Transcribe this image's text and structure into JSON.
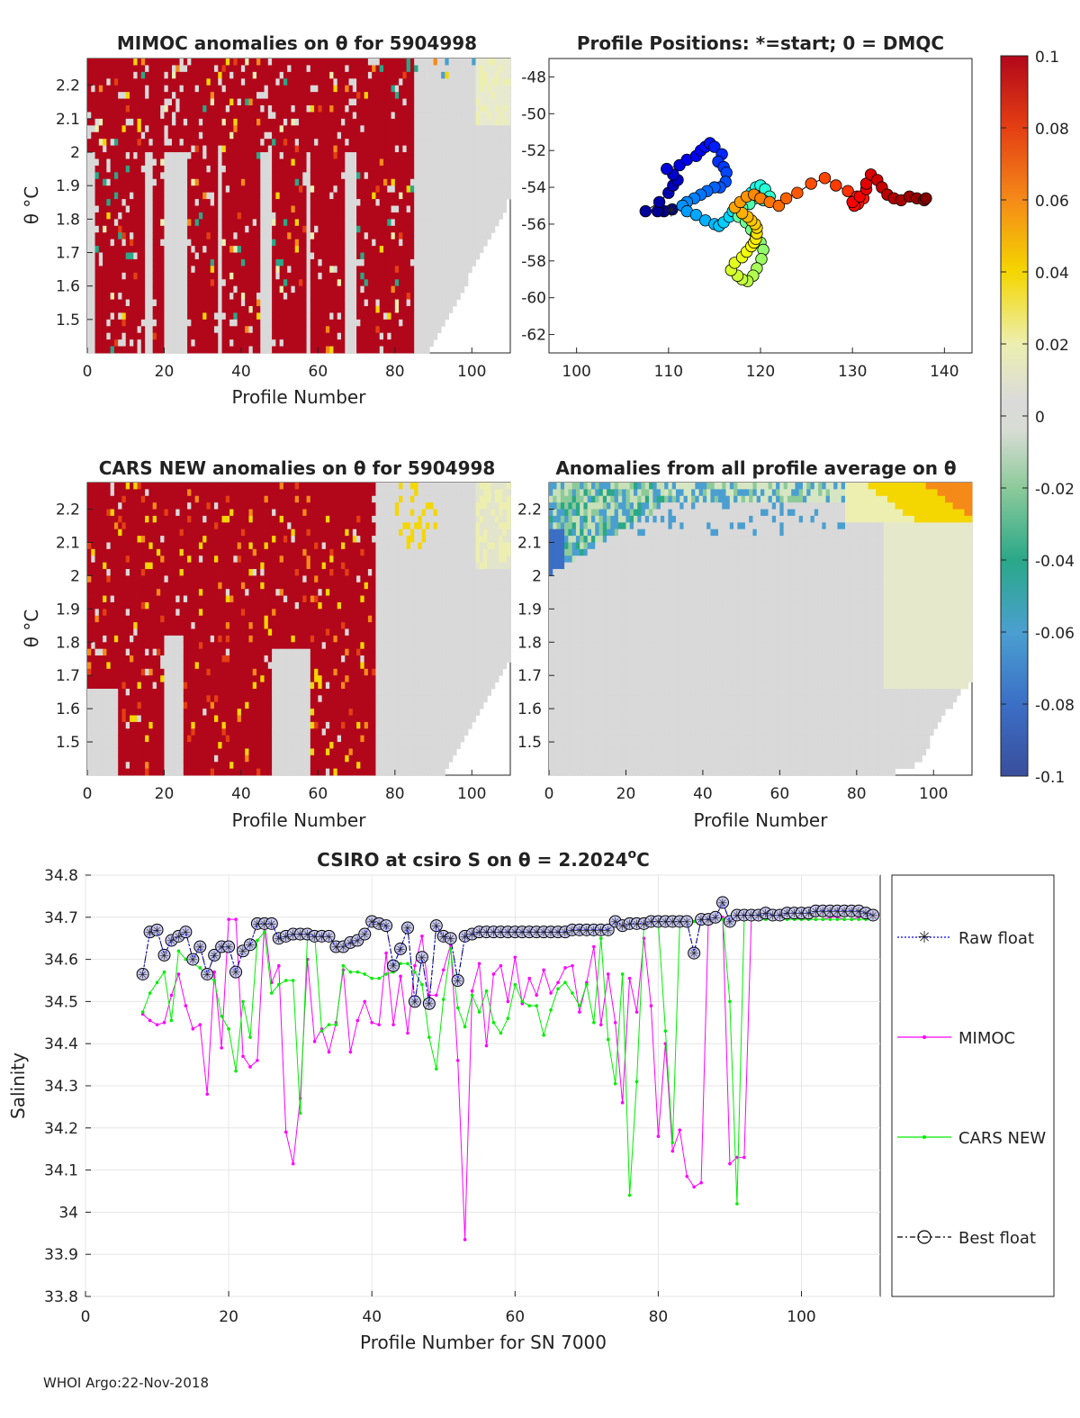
{
  "footer": "WHOI Argo:22-Nov-2018",
  "colors": {
    "red": "#b2071b",
    "grey": "#d9d9d9",
    "magenta": "#ff00ff",
    "green": "#00ee00",
    "blue": "#0000ff",
    "black": "#000000"
  },
  "colorbar": {
    "ticks": [
      "0.1",
      "0.08",
      "0.06",
      "0.04",
      "0.02",
      "0",
      "-0.02",
      "-0.04",
      "-0.06",
      "-0.08",
      "-0.1"
    ],
    "range": [
      -0.1,
      0.1
    ]
  },
  "chart_data": [
    {
      "id": "mimoc",
      "type": "heatmap",
      "title": "MIMOC anomalies on θ  for 5904998",
      "xlabel": "Profile Number",
      "ylabel": "θ °C",
      "xlim": [
        0,
        110
      ],
      "ylim": [
        1.4,
        2.28
      ],
      "xticks": [
        "0",
        "20",
        "40",
        "60",
        "80",
        "100"
      ],
      "yticks": [
        "2.2",
        "2.1",
        "2",
        "1.9",
        "1.8",
        "1.7",
        "1.6",
        "1.5"
      ],
      "yticks_values": [
        2.2,
        2.1,
        2.0,
        1.9,
        1.8,
        1.7,
        1.6,
        1.5
      ],
      "xticks_values": [
        0,
        20,
        40,
        60,
        80,
        100
      ],
      "dominant": "positive anomalies (red) for profiles 0-85, near zero (grey) beyond",
      "red_columns": [
        [
          2,
          14
        ],
        [
          17,
          19
        ],
        [
          26,
          33
        ],
        [
          35,
          44
        ],
        [
          48,
          56
        ],
        [
          58,
          66
        ],
        [
          70,
          84
        ]
      ],
      "data_extent": {
        "x": [
          0,
          110
        ],
        "bottom_edge": [
          [
            0,
            1.4
          ],
          [
            80,
            1.4
          ],
          [
            85,
            1.47
          ],
          [
            90,
            1.53
          ],
          [
            95,
            1.6
          ],
          [
            100,
            1.68
          ],
          [
            105,
            1.8
          ],
          [
            110,
            2.0
          ]
        ]
      }
    },
    {
      "id": "positions",
      "type": "scatter",
      "title": "Profile Positions: *=start; 0 = DMQC",
      "xlim": [
        97,
        143
      ],
      "ylim": [
        -63,
        -47
      ],
      "xticks": [
        "100",
        "110",
        "120",
        "130",
        "140"
      ],
      "xticks_values": [
        100,
        110,
        120,
        130,
        140
      ],
      "yticks": [
        "-48",
        "-50",
        "-52",
        "-54",
        "-56",
        "-58",
        "-60",
        "-62"
      ],
      "yticks_values": [
        -48,
        -50,
        -52,
        -54,
        -56,
        -58,
        -60,
        -62
      ],
      "lon": [
        110.4,
        109.5,
        108.8,
        107.5,
        109,
        110,
        110.5,
        111,
        110.5,
        109.8,
        111.2,
        112,
        113,
        113.5,
        114,
        114.5,
        115,
        115.8,
        115.4,
        116,
        116.3,
        116.2,
        115.6,
        115,
        114.2,
        113.5,
        112.8,
        112,
        111.5,
        112,
        113,
        114,
        115,
        115.5,
        116,
        116.6,
        117,
        117.5,
        118,
        118.5,
        119,
        119.5,
        120,
        120.5,
        121,
        120.3,
        119.4,
        118.8,
        118,
        117.6,
        118.4,
        119,
        119.5,
        120,
        120.3,
        120.1,
        119.6,
        119.2,
        118.6,
        118,
        117.5,
        116.8,
        117.2,
        118,
        118.5,
        119,
        119.3,
        119.5,
        119.6,
        119.6,
        119.4,
        119,
        118.6,
        118,
        117.2,
        117.8,
        118.5,
        119.3,
        120,
        121,
        122,
        122.8,
        124,
        125.5,
        127,
        128.2,
        129.5,
        130.5,
        131.2,
        130.6,
        130.2,
        130,
        130.8,
        131.5,
        131.5,
        132,
        132.7,
        133.2,
        133.8,
        134.5,
        135.3,
        136.2,
        137,
        137.8,
        138
      ],
      "lat": [
        -55.2,
        -55.3,
        -55.3,
        -55.3,
        -54.8,
        -54.3,
        -53.9,
        -53.6,
        -53.3,
        -53,
        -52.8,
        -52.5,
        -52.3,
        -52,
        -51.8,
        -51.6,
        -51.8,
        -52.2,
        -52.6,
        -52.9,
        -53.2,
        -53.7,
        -54,
        -54,
        -54.2,
        -54.4,
        -54.6,
        -54.8,
        -55,
        -55.3,
        -55.5,
        -55.8,
        -56,
        -56.1,
        -55.9,
        -55.6,
        -55.3,
        -55.1,
        -54.8,
        -54.6,
        -54.3,
        -54.0,
        -53.9,
        -54.1,
        -54.5,
        -54.7,
        -54.6,
        -54.9,
        -55.1,
        -55.6,
        -55.9,
        -56.3,
        -56.6,
        -57,
        -57.4,
        -57.9,
        -58.4,
        -58.8,
        -59.1,
        -59.0,
        -58.8,
        -58.5,
        -58.1,
        -57.8,
        -57.5,
        -57.2,
        -57,
        -56.8,
        -56.5,
        -56.2,
        -56.0,
        -55.8,
        -55.6,
        -55.4,
        -55.1,
        -54.8,
        -54.5,
        -54.4,
        -54.6,
        -54.8,
        -55.0,
        -54.6,
        -54.3,
        -53.8,
        -53.5,
        -53.9,
        -54.2,
        -54.5,
        -54.6,
        -54.9,
        -55.0,
        -54.8,
        -54.5,
        -54.1,
        -53.8,
        -53.3,
        -53.6,
        -54.0,
        -54.4,
        -54.6,
        -54.7,
        -54.5,
        -54.6,
        -54.7,
        -54.6
      ],
      "start": [
        110.3,
        -55.2
      ]
    },
    {
      "id": "cars",
      "type": "heatmap",
      "title": "CARS NEW anomalies on θ for 5904998",
      "xlabel": "Profile Number",
      "ylabel": "θ °C",
      "xlim": [
        0,
        110
      ],
      "ylim": [
        1.4,
        2.28
      ],
      "xticks": [
        "0",
        "20",
        "40",
        "60",
        "80",
        "100"
      ],
      "xticks_values": [
        0,
        20,
        40,
        60,
        80,
        100
      ],
      "yticks": [
        "2.2",
        "2.1",
        "2",
        "1.9",
        "1.8",
        "1.7",
        "1.6",
        "1.5"
      ],
      "yticks_values": [
        2.2,
        2.1,
        2.0,
        1.9,
        1.8,
        1.7,
        1.6,
        1.5
      ],
      "dominant": "positive anomalies (red) over profiles 0-75, near zero (grey) beyond"
    },
    {
      "id": "allavg",
      "type": "heatmap",
      "title": "Anomalies from all profile average on θ",
      "xlabel": "Profile Number",
      "xlim": [
        0,
        110
      ],
      "ylim": [
        1.4,
        2.28
      ],
      "xticks": [
        "0",
        "20",
        "40",
        "60",
        "80",
        "100"
      ],
      "xticks_values": [
        0,
        20,
        40,
        60,
        80,
        100
      ],
      "yticks": [
        "2.2",
        "2.1",
        "2",
        "1.9",
        "1.8",
        "1.7",
        "1.6",
        "1.5"
      ],
      "yticks_values": [
        2.2,
        2.1,
        2.0,
        1.9,
        1.8,
        1.7,
        1.6,
        1.5
      ],
      "dominant": "negative anomalies (blue) upper-left, positive (orange) upper-right, near zero elsewhere"
    },
    {
      "id": "salinity",
      "type": "line",
      "title_main": "CSIRO at csiro S on θ = 2.2024",
      "title_sup": "o",
      "title_end": "C",
      "xlabel": "Profile Number for SN 7000",
      "ylabel": "Salinity",
      "xlim": [
        0,
        111
      ],
      "ylim": [
        33.8,
        34.8
      ],
      "xticks": [
        "0",
        "20",
        "40",
        "60",
        "80",
        "100"
      ],
      "xticks_values": [
        0,
        20,
        40,
        60,
        80,
        100
      ],
      "yticks": [
        "34.8",
        "34.7",
        "34.6",
        "34.5",
        "34.4",
        "34.3",
        "34.2",
        "34.1",
        "34",
        "33.9",
        "33.8"
      ],
      "yticks_values": [
        34.8,
        34.7,
        34.6,
        34.5,
        34.4,
        34.3,
        34.2,
        34.1,
        34.0,
        33.9,
        33.8
      ],
      "x": [
        8,
        9,
        10,
        11,
        12,
        13,
        14,
        15,
        16,
        17,
        18,
        19,
        20,
        21,
        22,
        23,
        24,
        25,
        26,
        27,
        28,
        29,
        30,
        31,
        32,
        33,
        34,
        35,
        36,
        37,
        38,
        39,
        40,
        41,
        42,
        43,
        44,
        45,
        46,
        47,
        48,
        49,
        50,
        51,
        52,
        53,
        54,
        55,
        56,
        57,
        58,
        59,
        60,
        61,
        62,
        63,
        64,
        65,
        66,
        67,
        68,
        69,
        70,
        71,
        72,
        73,
        74,
        75,
        76,
        77,
        78,
        79,
        80,
        81,
        82,
        83,
        84,
        85,
        86,
        87,
        88,
        89,
        90,
        91,
        92,
        93,
        94,
        95,
        96,
        97,
        98,
        99,
        100,
        101,
        102,
        103,
        104,
        105,
        106,
        107,
        108,
        109,
        110
      ],
      "series": [
        {
          "name": "Raw float",
          "values": [
            34.565,
            34.665,
            34.67,
            34.61,
            34.645,
            34.655,
            34.665,
            34.6,
            34.63,
            34.565,
            34.61,
            34.63,
            34.63,
            34.57,
            34.62,
            34.635,
            34.685,
            34.685,
            34.685,
            34.65,
            34.655,
            34.66,
            34.66,
            34.66,
            34.655,
            34.655,
            34.655,
            34.63,
            34.63,
            34.64,
            34.645,
            34.66,
            34.69,
            34.685,
            34.68,
            34.585,
            34.625,
            34.675,
            34.5,
            34.605,
            34.495,
            34.68,
            34.655,
            34.65,
            34.55,
            34.655,
            34.66,
            34.665,
            34.665,
            34.665,
            34.665,
            34.665,
            34.665,
            34.665,
            34.665,
            34.665,
            34.665,
            34.665,
            34.665,
            34.665,
            34.67,
            34.67,
            34.67,
            34.67,
            34.67,
            34.67,
            34.69,
            34.68,
            34.685,
            34.685,
            34.685,
            34.69,
            34.69,
            34.69,
            34.69,
            34.69,
            34.69,
            34.615,
            34.695,
            34.695,
            34.7,
            34.735,
            34.69,
            34.705,
            34.705,
            34.705,
            34.705,
            34.71,
            34.705,
            34.705,
            34.71,
            34.71,
            34.71,
            34.71,
            34.715,
            34.715,
            34.715,
            34.715,
            34.715,
            34.715,
            34.715,
            34.71,
            34.705
          ]
        },
        {
          "name": "MIMOC",
          "values": [
            34.47,
            34.455,
            34.445,
            34.45,
            34.515,
            34.565,
            34.49,
            34.435,
            34.445,
            34.28,
            34.57,
            34.39,
            34.695,
            34.695,
            34.37,
            34.345,
            34.36,
            34.69,
            34.545,
            34.585,
            34.19,
            34.115,
            34.27,
            34.6,
            34.405,
            34.435,
            34.38,
            34.45,
            34.575,
            34.38,
            34.455,
            34.5,
            34.45,
            34.445,
            34.615,
            34.445,
            34.56,
            34.425,
            34.585,
            34.655,
            34.515,
            34.515,
            34.575,
            34.635,
            34.36,
            33.935,
            34.525,
            34.59,
            34.395,
            34.565,
            34.585,
            34.5,
            34.605,
            34.495,
            34.555,
            34.515,
            34.575,
            34.52,
            34.545,
            34.58,
            34.585,
            34.475,
            34.545,
            34.63,
            34.445,
            34.565,
            34.45,
            34.26,
            34.555,
            34.475,
            34.65,
            34.49,
            34.18,
            34.4,
            34.145,
            34.195,
            34.085,
            34.06,
            34.07,
            34.695,
            34.69,
            34.7,
            34.115,
            34.13,
            34.13,
            34.695,
            34.7,
            34.7,
            34.695,
            34.695,
            34.7,
            34.7,
            34.695,
            34.695,
            34.695,
            34.695,
            34.7,
            34.7,
            34.695,
            34.695,
            34.7,
            34.7,
            34.695
          ]
        },
        {
          "name": "CARS NEW",
          "values": [
            34.475,
            34.52,
            34.545,
            34.57,
            34.455,
            34.62,
            34.6,
            34.59,
            34.58,
            34.56,
            34.55,
            34.465,
            34.435,
            34.335,
            34.5,
            34.415,
            34.645,
            34.665,
            34.52,
            34.54,
            34.55,
            34.55,
            34.235,
            34.655,
            34.66,
            34.43,
            34.445,
            34.445,
            34.585,
            34.57,
            34.57,
            34.565,
            34.555,
            34.555,
            34.565,
            34.57,
            34.59,
            34.59,
            34.57,
            34.54,
            34.415,
            34.34,
            34.505,
            34.625,
            34.485,
            34.44,
            34.515,
            34.475,
            34.525,
            34.45,
            34.425,
            34.46,
            34.54,
            34.5,
            34.49,
            34.49,
            34.42,
            34.48,
            34.53,
            34.545,
            34.52,
            34.49,
            34.54,
            34.45,
            34.65,
            34.41,
            34.305,
            34.565,
            34.04,
            34.31,
            34.68,
            34.685,
            34.685,
            34.43,
            34.165,
            34.685,
            34.69,
            34.69,
            34.69,
            34.695,
            34.695,
            34.695,
            34.5,
            34.02,
            34.695,
            34.695,
            34.695,
            34.695,
            34.695,
            34.695,
            34.695,
            34.695,
            34.695,
            34.695,
            34.695,
            34.695,
            34.695,
            34.695,
            34.695,
            34.695,
            34.695,
            34.695,
            34.695
          ]
        },
        {
          "name": "Best float",
          "values": [
            34.565,
            34.665,
            34.67,
            34.61,
            34.645,
            34.655,
            34.665,
            34.6,
            34.63,
            34.565,
            34.61,
            34.63,
            34.63,
            34.57,
            34.62,
            34.635,
            34.685,
            34.685,
            34.685,
            34.65,
            34.655,
            34.66,
            34.66,
            34.66,
            34.655,
            34.655,
            34.655,
            34.63,
            34.63,
            34.64,
            34.645,
            34.66,
            34.69,
            34.685,
            34.68,
            34.585,
            34.625,
            34.675,
            34.5,
            34.605,
            34.495,
            34.68,
            34.655,
            34.65,
            34.55,
            34.655,
            34.66,
            34.665,
            34.665,
            34.665,
            34.665,
            34.665,
            34.665,
            34.665,
            34.665,
            34.665,
            34.665,
            34.665,
            34.665,
            34.665,
            34.67,
            34.67,
            34.67,
            34.67,
            34.67,
            34.67,
            34.69,
            34.68,
            34.685,
            34.685,
            34.685,
            34.69,
            34.69,
            34.69,
            34.69,
            34.69,
            34.69,
            34.615,
            34.695,
            34.695,
            34.7,
            34.735,
            34.69,
            34.705,
            34.705,
            34.705,
            34.705,
            34.71,
            34.705,
            34.705,
            34.71,
            34.71,
            34.71,
            34.71,
            34.715,
            34.715,
            34.715,
            34.715,
            34.715,
            34.715,
            34.715,
            34.71,
            34.705
          ]
        }
      ],
      "legend": [
        "Raw float",
        "MIMOC",
        "CARS NEW",
        "Best float"
      ]
    }
  ]
}
